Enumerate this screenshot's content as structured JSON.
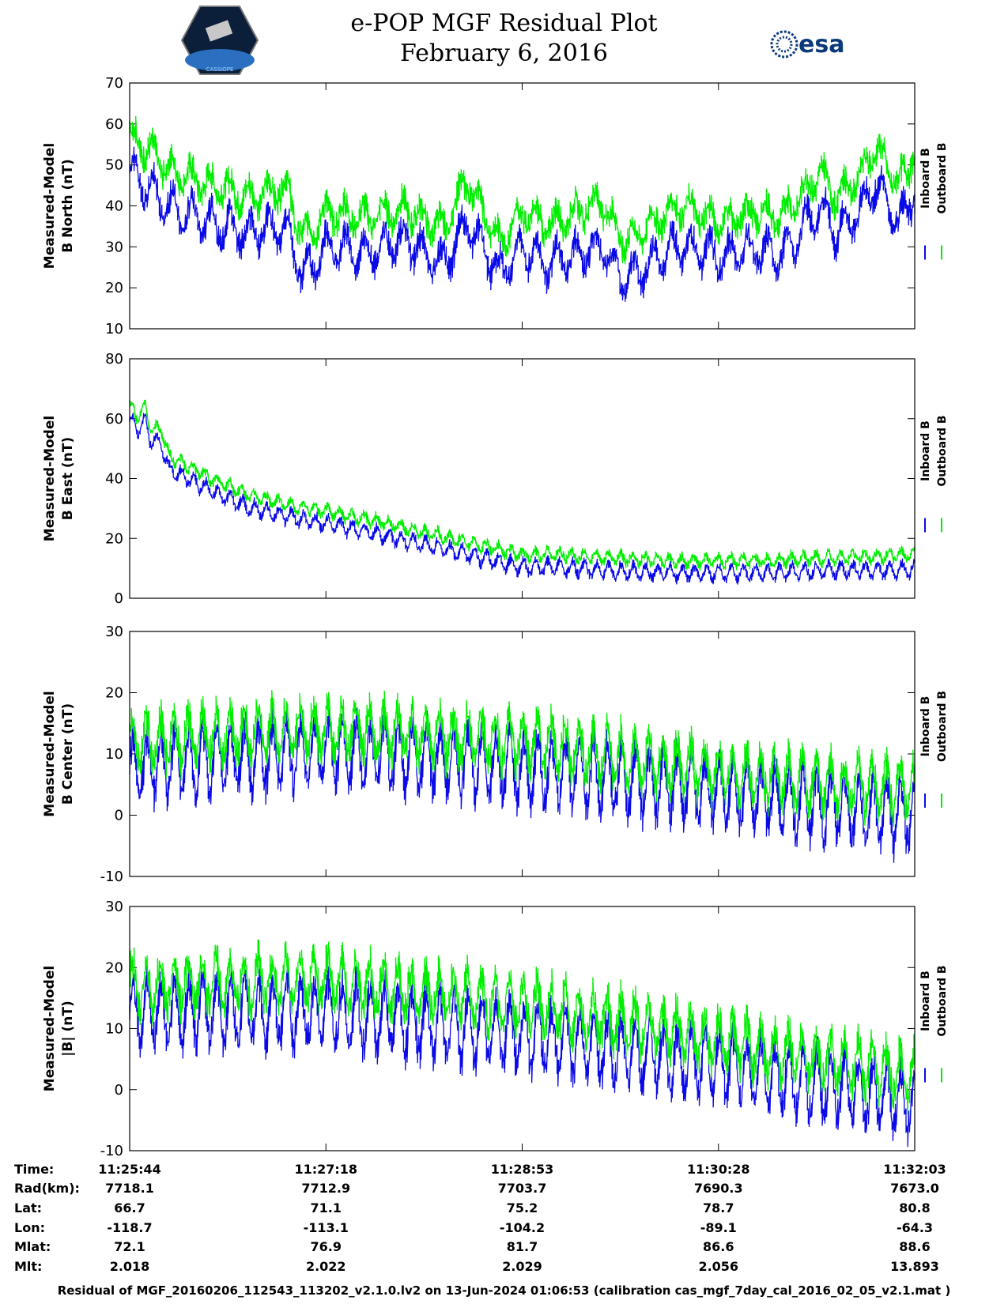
{
  "title": "e-POP MGF Residual Plot",
  "date": "February 6, 2016",
  "logos": {
    "left_icon": "cassiope-mission-badge-icon",
    "left_text": "CASSIOPE",
    "right_icon": "esa-logo-icon",
    "right_text": "esa"
  },
  "colors": {
    "inboard": "#0a0ae6",
    "outboard": "#00ee00"
  },
  "legend": {
    "inboard": "Inboard B",
    "outboard": "Outboard B"
  },
  "chart_data": [
    {
      "type": "line",
      "ylabel_line1": "Measured-Model",
      "ylabel_line2": "B North (nT)",
      "ylim": [
        10,
        70
      ],
      "yticks": [
        10,
        20,
        30,
        40,
        50,
        60,
        70
      ],
      "x": [
        0,
        0.05,
        0.1,
        0.15,
        0.2,
        0.22,
        0.25,
        0.3,
        0.35,
        0.4,
        0.43,
        0.47,
        0.5,
        0.53,
        0.6,
        0.63,
        0.7,
        0.75,
        0.8,
        0.83,
        0.88,
        0.9,
        0.93,
        0.95,
        0.98,
        1
      ],
      "series": [
        {
          "name": "Inboard B",
          "values": [
            50,
            41,
            37,
            35,
            36,
            24,
            31,
            30,
            33,
            27,
            37,
            25,
            31,
            27,
            31,
            23,
            32,
            29,
            31,
            29,
            41,
            35,
            40,
            47,
            37,
            45
          ]
        },
        {
          "name": "Outboard B",
          "values": [
            56,
            48,
            44,
            41,
            43,
            31,
            37,
            36,
            38,
            33,
            45,
            30,
            37,
            34,
            40,
            30,
            39,
            35,
            37,
            36,
            47,
            41,
            46,
            53,
            44,
            52
          ]
        }
      ]
    },
    {
      "type": "line",
      "ylabel_line1": "Measured-Model",
      "ylabel_line2": "B East (nT)",
      "ylim": [
        0,
        80
      ],
      "yticks": [
        0,
        20,
        40,
        60,
        80
      ],
      "x": [
        0,
        0.01,
        0.02,
        0.025,
        0.04,
        0.05,
        0.1,
        0.15,
        0.2,
        0.3,
        0.4,
        0.5,
        0.55,
        0.6,
        0.7,
        0.75,
        0.8,
        0.9,
        1
      ],
      "series": [
        {
          "name": "Inboard B",
          "values": [
            60,
            57,
            60,
            54,
            52,
            44,
            37,
            31,
            28,
            23,
            17,
            11,
            11,
            10,
            9,
            9,
            9,
            10,
            10
          ]
        },
        {
          "name": "Outboard B",
          "values": [
            64,
            60,
            64,
            57,
            56,
            47,
            40,
            34,
            31,
            26,
            20,
            14,
            14,
            13,
            12,
            12,
            12,
            13,
            14
          ]
        }
      ]
    },
    {
      "type": "line",
      "ylabel_line1": "Measured-Model",
      "ylabel_line2": "B Center (nT)",
      "ylim": [
        -10,
        30
      ],
      "yticks": [
        -10,
        0,
        10,
        20,
        30
      ],
      "x": [
        0,
        0.25,
        0.5,
        0.75,
        1
      ],
      "series": [
        {
          "name": "Inboard B",
          "values": [
            9,
            12,
            9,
            5,
            1
          ]
        },
        {
          "name": "Outboard B",
          "values": [
            11,
            13,
            11,
            6,
            3
          ]
        }
      ]
    },
    {
      "type": "line",
      "ylabel_line1": "Measured-Model",
      "ylabel_line2": "|B| (nT)",
      "ylim": [
        -10,
        30
      ],
      "yticks": [
        -10,
        0,
        10,
        20,
        30
      ],
      "x": [
        0,
        0.25,
        0.5,
        0.75,
        1
      ],
      "series": [
        {
          "name": "Inboard B",
          "values": [
            14,
            14,
            10,
            5,
            -1
          ]
        },
        {
          "name": "Outboard B",
          "values": [
            16,
            17,
            13,
            7,
            1
          ]
        }
      ]
    }
  ],
  "table": {
    "labels": [
      "Time:",
      "Rad(km):",
      "Lat:",
      "Lon:",
      "Mlat:",
      "Mlt:"
    ],
    "columns": [
      [
        "11:25:44",
        "7718.1",
        "66.7",
        "-118.7",
        "72.1",
        "2.018"
      ],
      [
        "11:27:18",
        "7712.9",
        "71.1",
        "-113.1",
        "76.9",
        "2.022"
      ],
      [
        "11:28:53",
        "7703.7",
        "75.2",
        "-104.2",
        "81.7",
        "2.029"
      ],
      [
        "11:30:28",
        "7690.3",
        "78.7",
        "-89.1",
        "86.6",
        "2.056"
      ],
      [
        "11:32:03",
        "7673.0",
        "80.8",
        "-64.3",
        "88.6",
        "13.893"
      ]
    ]
  },
  "footer": "Residual of MGF_20160206_112543_113202_v2.1.0.lv2 on 13-Jun-2024 01:06:53 (calibration cas_mgf_7day_cal_2016_02_05_v2.1.mat )"
}
